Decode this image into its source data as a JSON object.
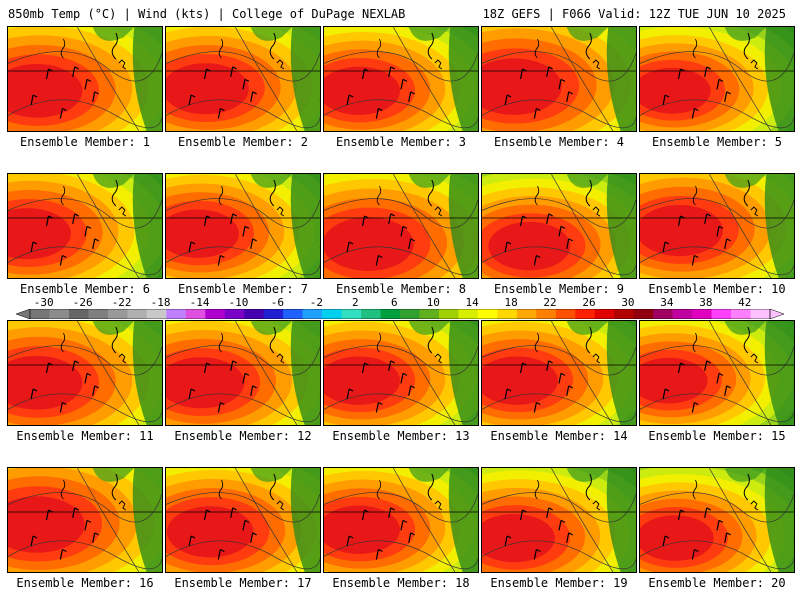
{
  "header": {
    "left": "850mb Temp (°C) | Wind (kts) | College of DuPage NEXLAB",
    "right": "18Z GEFS | F066 Valid: 12Z TUE JUN 10 2025"
  },
  "member_label_prefix": "Ensemble Member: ",
  "members": [
    {
      "number": 1,
      "hot_spot": [
        0.18,
        0.62
      ],
      "hot_scale": 1.0
    },
    {
      "number": 2,
      "hot_spot": [
        0.25,
        0.6
      ],
      "hot_scale": 0.95
    },
    {
      "number": 3,
      "hot_spot": [
        0.22,
        0.62
      ],
      "hot_scale": 0.9
    },
    {
      "number": 4,
      "hot_spot": [
        0.2,
        0.58
      ],
      "hot_scale": 1.05
    },
    {
      "number": 5,
      "hot_spot": [
        0.2,
        0.62
      ],
      "hot_scale": 0.85
    },
    {
      "number": 6,
      "hot_spot": [
        0.12,
        0.58
      ],
      "hot_scale": 0.95
    },
    {
      "number": 7,
      "hot_spot": [
        0.2,
        0.58
      ],
      "hot_scale": 0.9
    },
    {
      "number": 8,
      "hot_spot": [
        0.28,
        0.68
      ],
      "hot_scale": 1.0
    },
    {
      "number": 9,
      "hot_spot": [
        0.3,
        0.7
      ],
      "hot_scale": 0.9
    },
    {
      "number": 10,
      "hot_spot": [
        0.25,
        0.55
      ],
      "hot_scale": 0.95
    },
    {
      "number": 11,
      "hot_spot": [
        0.18,
        0.6
      ],
      "hot_scale": 1.0
    },
    {
      "number": 12,
      "hot_spot": [
        0.22,
        0.6
      ],
      "hot_scale": 0.95
    },
    {
      "number": 13,
      "hot_spot": [
        0.22,
        0.58
      ],
      "hot_scale": 0.9
    },
    {
      "number": 14,
      "hot_spot": [
        0.22,
        0.58
      ],
      "hot_scale": 0.9
    },
    {
      "number": 15,
      "hot_spot": [
        0.18,
        0.58
      ],
      "hot_scale": 0.85
    },
    {
      "number": 16,
      "hot_spot": [
        0.18,
        0.55
      ],
      "hot_scale": 1.05
    },
    {
      "number": 17,
      "hot_spot": [
        0.28,
        0.62
      ],
      "hot_scale": 0.95
    },
    {
      "number": 18,
      "hot_spot": [
        0.22,
        0.6
      ],
      "hot_scale": 0.9
    },
    {
      "number": 19,
      "hot_spot": [
        0.2,
        0.68
      ],
      "hot_scale": 0.9
    },
    {
      "number": 20,
      "hot_spot": [
        0.22,
        0.68
      ],
      "hot_scale": 0.85
    }
  ],
  "colorbar": {
    "labels": [
      "-30",
      "-26",
      "-22",
      "-18",
      "-14",
      "-10",
      "-6",
      "-2",
      "2",
      "6",
      "10",
      "14",
      "18",
      "22",
      "26",
      "30",
      "34",
      "38",
      "42"
    ],
    "colors": [
      "#777777",
      "#8c8c8c",
      "#666666",
      "#7f7f7f",
      "#999999",
      "#b0b0b0",
      "#c8c8c8",
      "#c080ff",
      "#e050e0",
      "#b000d0",
      "#7a00c8",
      "#4400b0",
      "#2020d0",
      "#2060ff",
      "#20a0ff",
      "#00d0f0",
      "#30e0c0",
      "#20c080",
      "#00a040",
      "#30a030",
      "#60b020",
      "#a0d000",
      "#d8f000",
      "#ffff00",
      "#ffd800",
      "#ffa800",
      "#ff8000",
      "#ff5000",
      "#ff2000",
      "#e00000",
      "#b00000",
      "#900010",
      "#a00060",
      "#c000a0",
      "#e000c0",
      "#ff40ff",
      "#ff80ff",
      "#ffc0ff"
    ]
  },
  "temperature_levels": [
    "#3c9a1e",
    "#5cb81e",
    "#9ad41a",
    "#ccec10",
    "#f2f000",
    "#ffc800",
    "#ff9c00",
    "#ff6c00",
    "#ff3c10",
    "#e81818"
  ]
}
